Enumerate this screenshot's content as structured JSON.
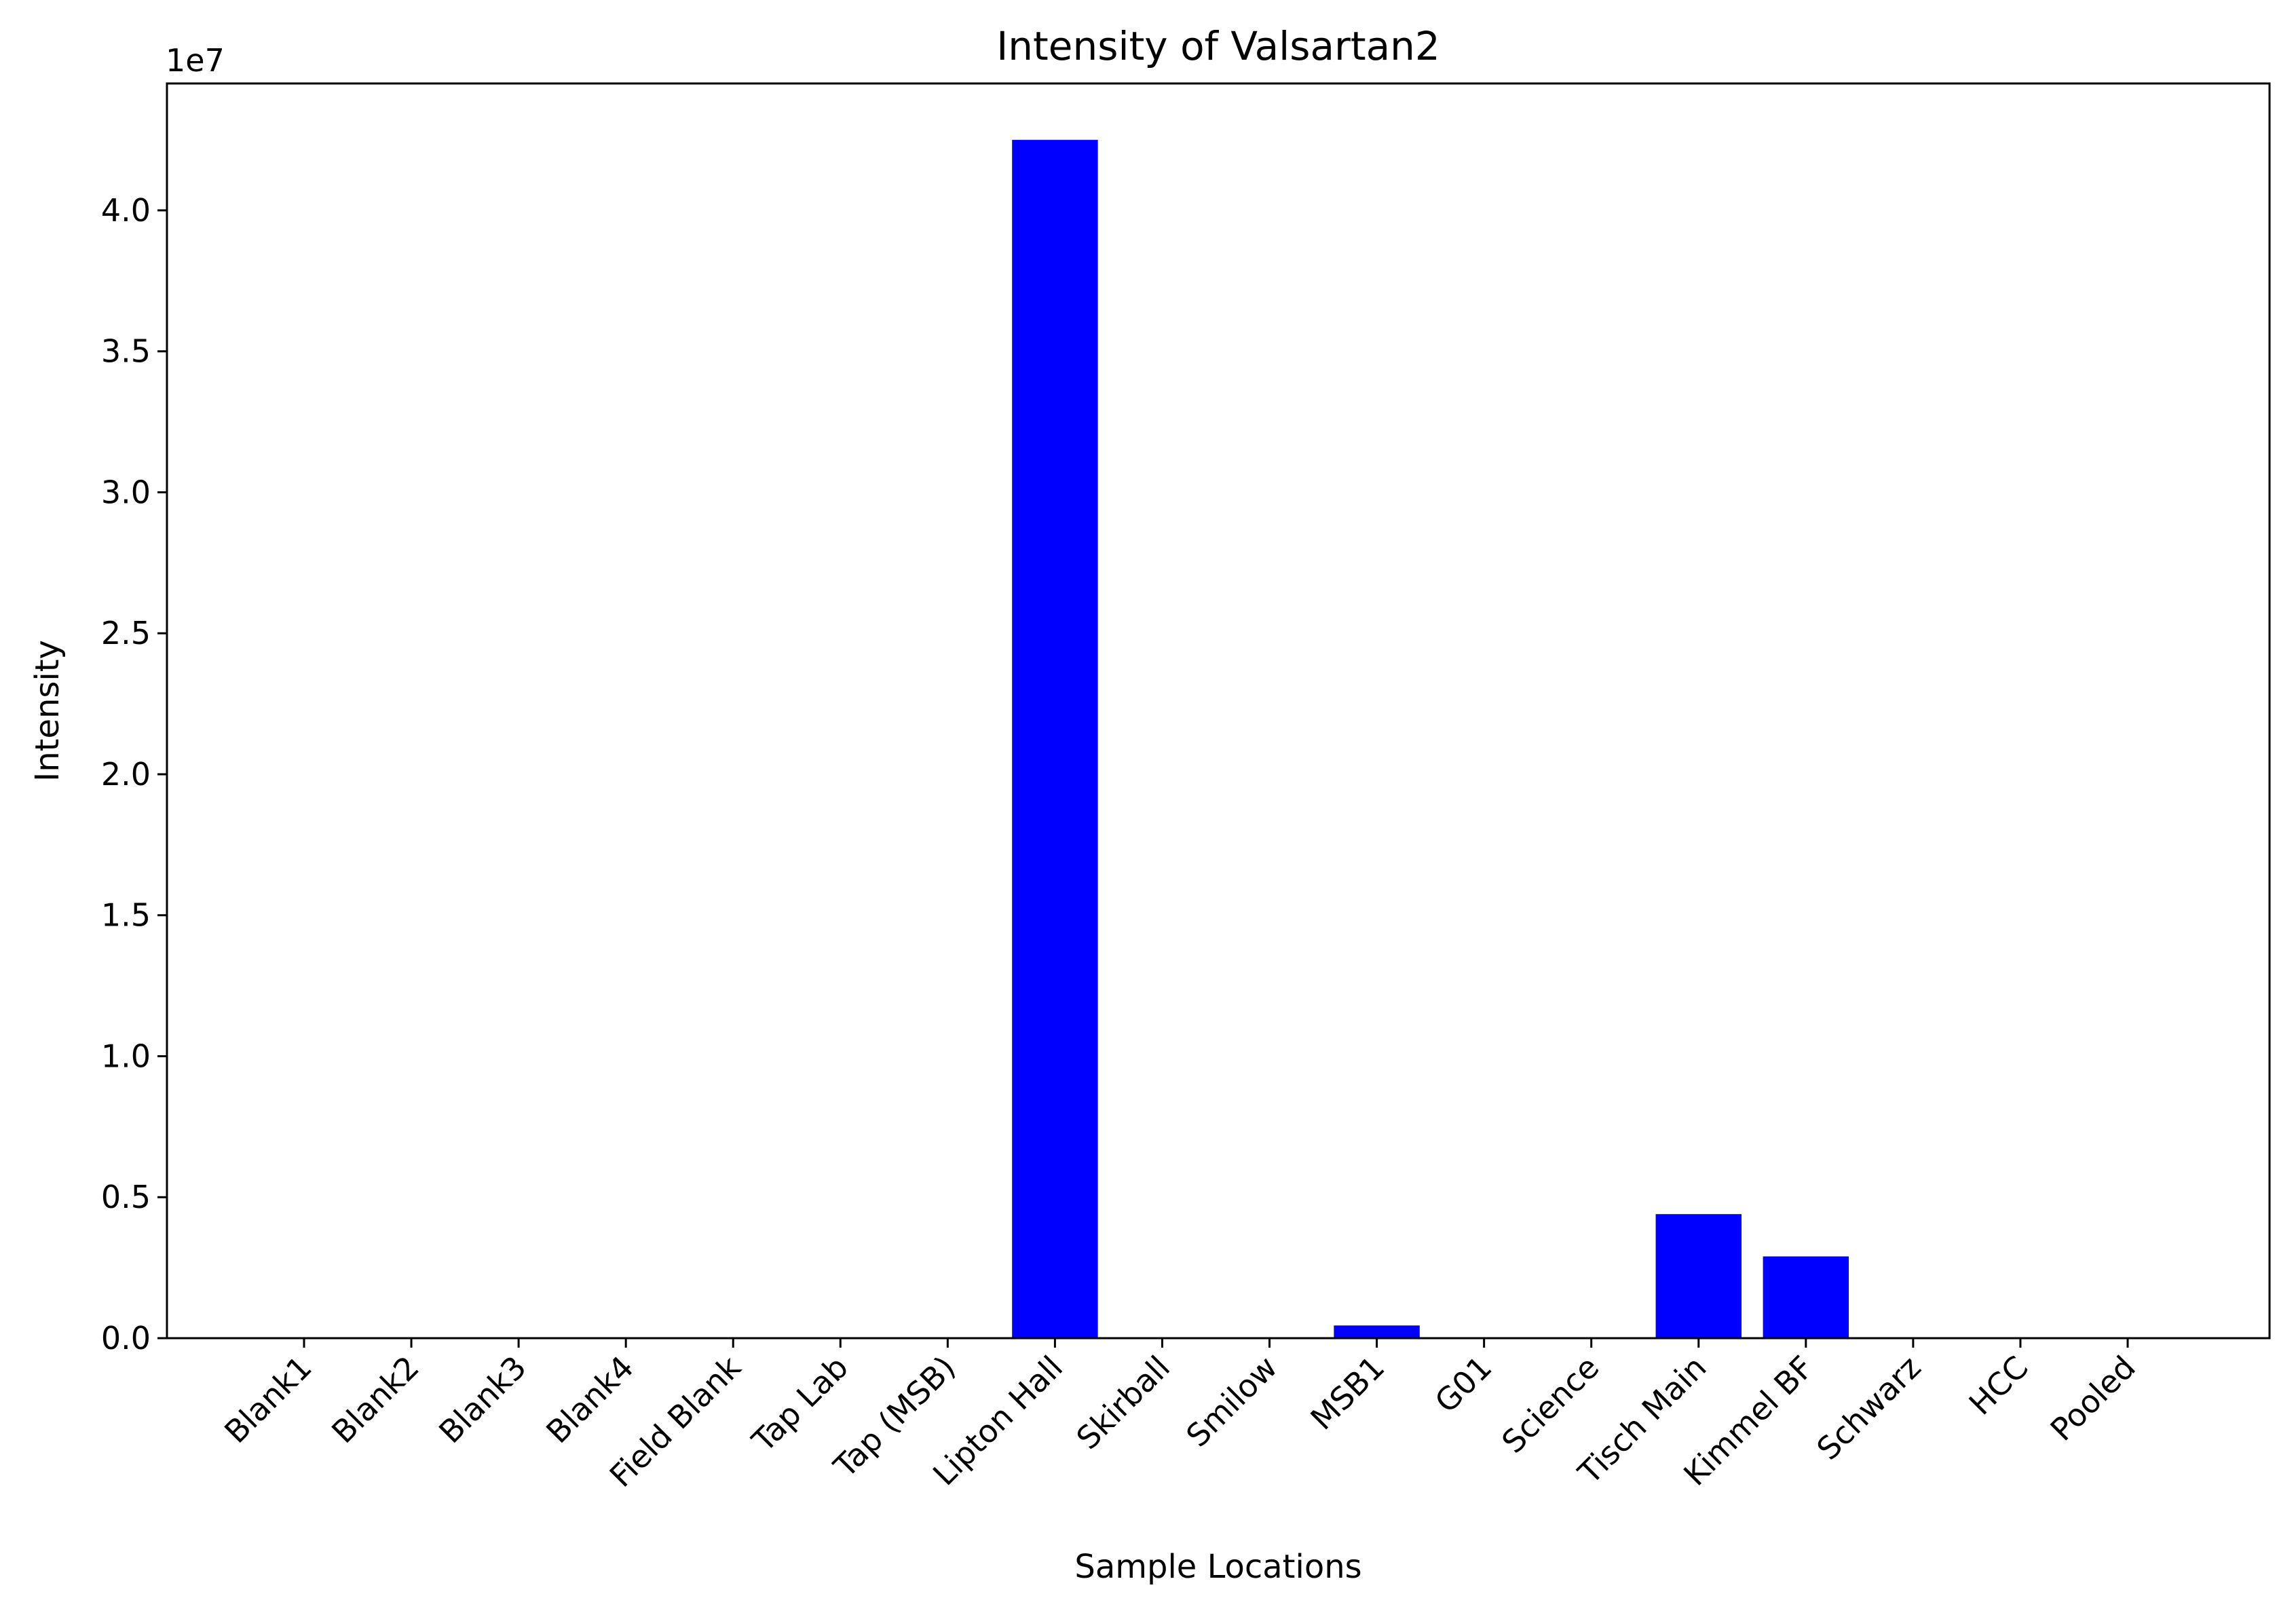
{
  "chart_data": {
    "type": "bar",
    "title": "Intensity of Valsartan2",
    "xlabel": "Sample Locations",
    "ylabel": "Intensity",
    "y_offset_label": "1e7",
    "y_scale": 10000000,
    "ylim": [
      0,
      44500000
    ],
    "yticks": [
      0,
      5000000,
      10000000,
      15000000,
      20000000,
      25000000,
      30000000,
      35000000,
      40000000
    ],
    "ytick_labels": [
      "0.0",
      "0.5",
      "1.0",
      "1.5",
      "2.0",
      "2.5",
      "3.0",
      "3.5",
      "4.0"
    ],
    "categories": [
      "Blank1",
      "Blank2",
      "Blank3",
      "Blank4",
      "Field Blank",
      "Tap Lab",
      "Tap (MSB)",
      "Lipton Hall",
      "Skirball",
      "Smilow",
      "MSB1",
      "G01",
      "Science",
      "Tisch Main",
      "Kimmel BF",
      "Schwarz",
      "HCC",
      "Pooled"
    ],
    "values": [
      0,
      0,
      0,
      0,
      0,
      0,
      0,
      42500000,
      0,
      0,
      450000,
      0,
      0,
      4400000,
      2900000,
      0,
      0,
      0
    ],
    "bar_color": "#0000ff",
    "grid": false,
    "legend": "none"
  }
}
